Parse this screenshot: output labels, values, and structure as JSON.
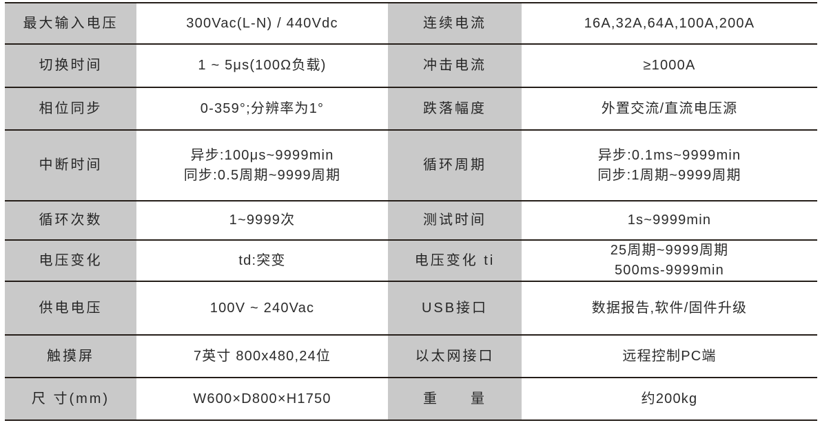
{
  "page": {
    "background": "#ffffff"
  },
  "table": {
    "colors": {
      "label_cell_bg": "#c9c9c9",
      "grid_line": "#241d18",
      "text": "#2b2b2b"
    },
    "rows": [
      {
        "label_left": "最大输入电压",
        "value_left": [
          "300Vac(L-N) / 440Vdc"
        ],
        "label_right": "连续电流",
        "value_right": [
          "16A,32A,64A,100A,200A"
        ]
      },
      {
        "label_left": "切换时间",
        "value_left": [
          "1 ~ 5μs(100Ω负载)"
        ],
        "label_right": "冲击电流",
        "value_right": [
          "≥1000A"
        ]
      },
      {
        "label_left": "相位同步",
        "value_left": [
          "0-359°;分辨率为1°"
        ],
        "label_right": "跌落幅度",
        "value_right": [
          "外置交流/直流电压源"
        ]
      },
      {
        "label_left": "中断时间",
        "value_left": [
          "异步:100μs~9999min",
          "同步:0.5周期~9999周期"
        ],
        "label_right": "循环周期",
        "value_right": [
          "异步:0.1ms~9999min",
          "同步:1周期~9999周期"
        ]
      },
      {
        "label_left": "循环次数",
        "value_left": [
          "1~9999次"
        ],
        "label_right": "测试时间",
        "value_right": [
          "1s~9999min"
        ]
      },
      {
        "label_left": "电压变化",
        "value_left": [
          "td:突变"
        ],
        "label_right": "电压变化 ti",
        "value_right": [
          "25周期~9999周期",
          "500ms-9999min"
        ]
      },
      {
        "label_left": "供电电压",
        "value_left": [
          "100V ~ 240Vac"
        ],
        "label_right": "USB接口",
        "value_right": [
          "数据报告,软件/固件升级"
        ]
      },
      {
        "label_left": "触摸屏",
        "value_left": [
          "7英寸 800x480,24位"
        ],
        "label_right": "以太网接口",
        "value_right": [
          "远程控制PC端"
        ]
      },
      {
        "label_left": "尺 寸(mm)",
        "value_left": [
          "W600×D800×H1750"
        ],
        "label_right": "重　　量",
        "value_right": [
          "约200kg"
        ]
      }
    ]
  }
}
